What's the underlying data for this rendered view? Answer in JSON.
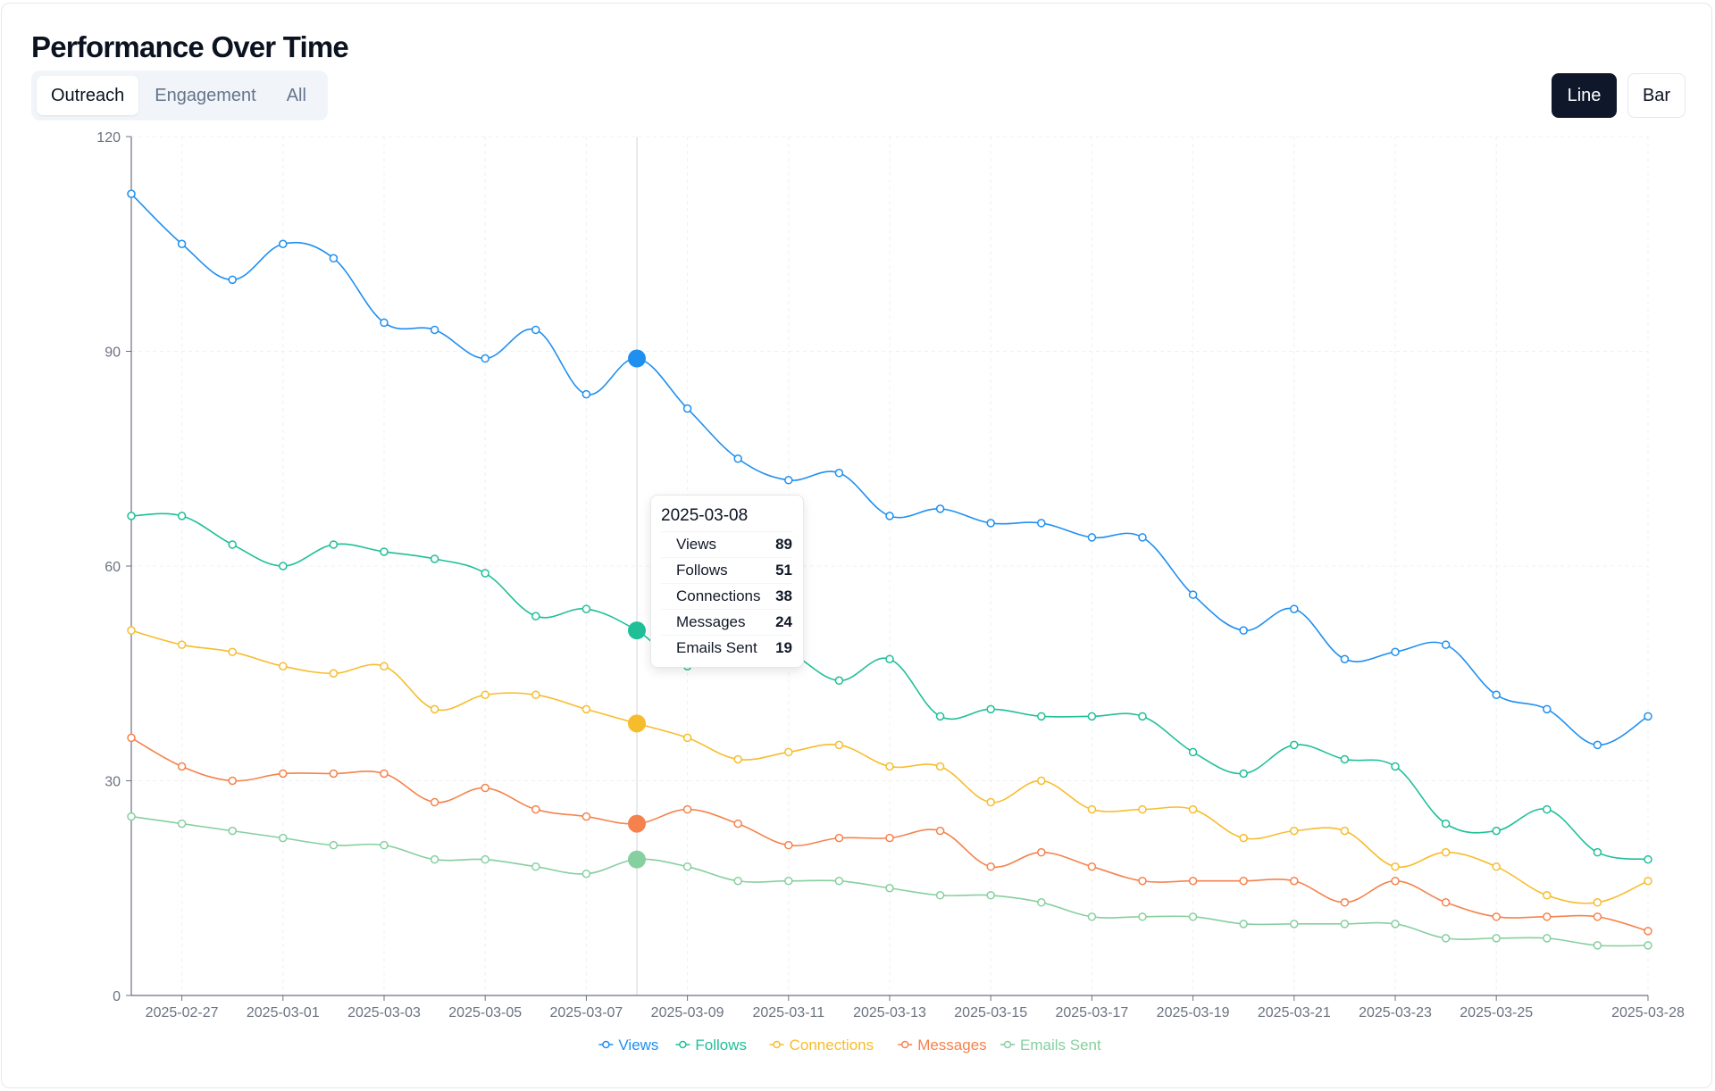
{
  "title": "Performance Over Time",
  "tabs": [
    {
      "label": "Outreach",
      "active": true
    },
    {
      "label": "Engagement",
      "active": false
    },
    {
      "label": "All",
      "active": false
    }
  ],
  "chart_toggle": {
    "line_label": "Line",
    "bar_label": "Bar",
    "selected": "Line"
  },
  "tooltip": {
    "date": "2025-03-08",
    "rows": [
      {
        "label": "Views",
        "value": "89"
      },
      {
        "label": "Follows",
        "value": "51"
      },
      {
        "label": "Connections",
        "value": "38"
      },
      {
        "label": "Messages",
        "value": "24"
      },
      {
        "label": "Emails Sent",
        "value": "19"
      }
    ]
  },
  "chart_data": {
    "type": "line",
    "x": [
      "2025-02-26",
      "2025-02-27",
      "2025-02-28",
      "2025-03-01",
      "2025-03-02",
      "2025-03-03",
      "2025-03-04",
      "2025-03-05",
      "2025-03-06",
      "2025-03-07",
      "2025-03-08",
      "2025-03-09",
      "2025-03-10",
      "2025-03-11",
      "2025-03-12",
      "2025-03-13",
      "2025-03-14",
      "2025-03-15",
      "2025-03-16",
      "2025-03-17",
      "2025-03-18",
      "2025-03-19",
      "2025-03-20",
      "2025-03-21",
      "2025-03-22",
      "2025-03-23",
      "2025-03-24",
      "2025-03-25",
      "2025-03-26",
      "2025-03-27",
      "2025-03-28"
    ],
    "x_tick_labels": [
      "2025-02-27",
      "2025-03-01",
      "2025-03-03",
      "2025-03-05",
      "2025-03-07",
      "2025-03-09",
      "2025-03-11",
      "2025-03-13",
      "2025-03-15",
      "2025-03-17",
      "2025-03-19",
      "2025-03-21",
      "2025-03-23",
      "2025-03-25",
      "2025-03-28"
    ],
    "y_ticks": [
      0,
      30,
      60,
      90,
      120
    ],
    "ylim": [
      0,
      120
    ],
    "grid": true,
    "legend_position": "bottom-center",
    "highlighted_x": "2025-03-08",
    "series": [
      {
        "name": "Views",
        "color": "#1f8ff0",
        "values": [
          112,
          105,
          100,
          105,
          103,
          94,
          93,
          89,
          93,
          84,
          89,
          82,
          75,
          72,
          73,
          67,
          68,
          66,
          66,
          64,
          64,
          56,
          51,
          54,
          47,
          48,
          49,
          42,
          40,
          35,
          39
        ]
      },
      {
        "name": "Follows",
        "color": "#1fbf98",
        "values": [
          67,
          67,
          63,
          60,
          63,
          62,
          61,
          59,
          53,
          54,
          51,
          46,
          50,
          48,
          44,
          47,
          39,
          40,
          39,
          39,
          39,
          34,
          31,
          35,
          33,
          32,
          24,
          23,
          26,
          20,
          19
        ]
      },
      {
        "name": "Connections",
        "color": "#f7bc2c",
        "values": [
          51,
          49,
          48,
          46,
          45,
          46,
          40,
          42,
          42,
          40,
          38,
          36,
          33,
          34,
          35,
          32,
          32,
          27,
          30,
          26,
          26,
          26,
          22,
          23,
          23,
          18,
          20,
          18,
          14,
          13,
          16
        ]
      },
      {
        "name": "Messages",
        "color": "#f5824c",
        "values": [
          36,
          32,
          30,
          31,
          31,
          31,
          27,
          29,
          26,
          25,
          24,
          26,
          24,
          21,
          22,
          22,
          23,
          18,
          20,
          18,
          16,
          16,
          16,
          16,
          13,
          16,
          13,
          11,
          11,
          11,
          9
        ]
      },
      {
        "name": "Emails Sent",
        "color": "#86cf9f",
        "values": [
          25,
          24,
          23,
          22,
          21,
          21,
          19,
          19,
          18,
          17,
          19,
          18,
          16,
          16,
          16,
          15,
          14,
          14,
          13,
          11,
          11,
          11,
          10,
          10,
          10,
          10,
          8,
          8,
          8,
          7,
          7
        ]
      }
    ]
  }
}
